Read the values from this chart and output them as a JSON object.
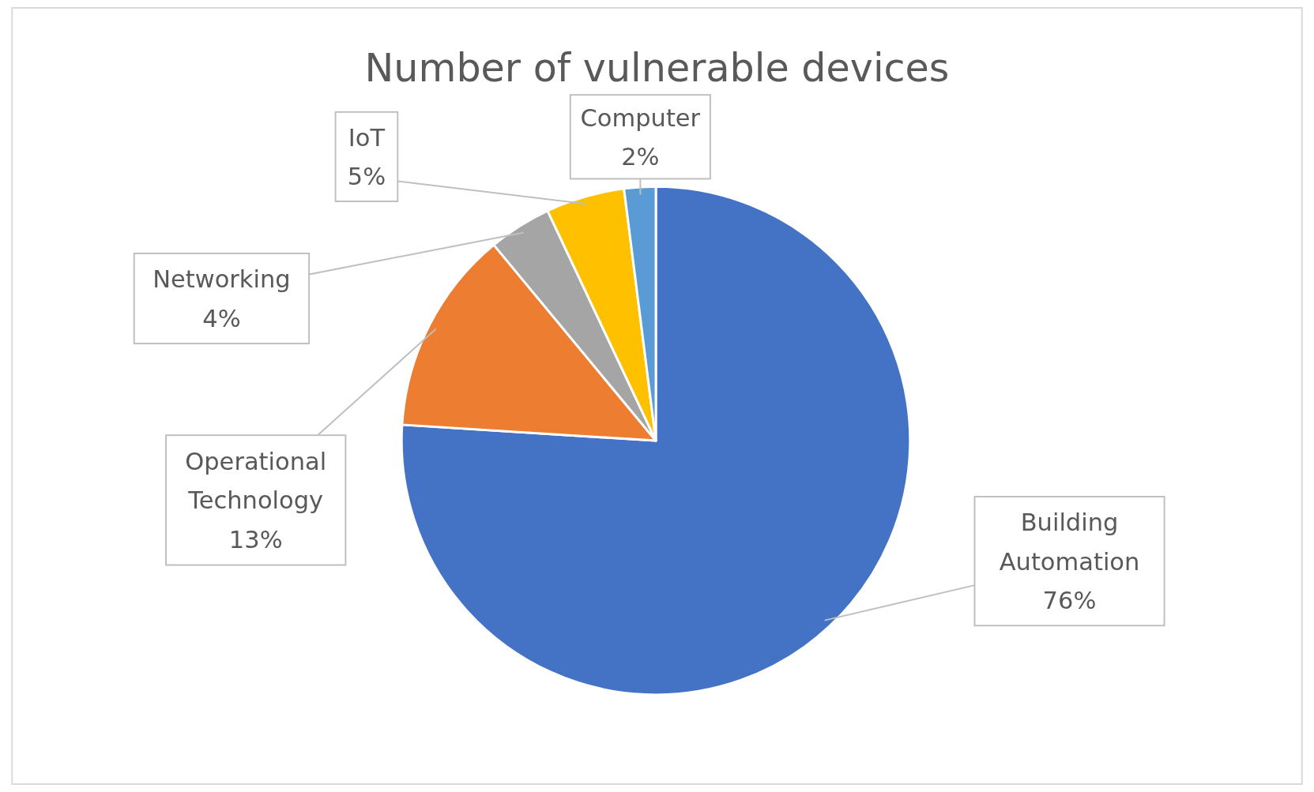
{
  "chart_data": {
    "type": "pie",
    "title": "Number of vulnerable devices",
    "categories": [
      "Building Automation",
      "Operational Technology",
      "Networking",
      "IoT",
      "Computer"
    ],
    "values": [
      76,
      13,
      4,
      5,
      2
    ],
    "value_labels": [
      "76%",
      "13%",
      "4%",
      "5%",
      "2%"
    ],
    "colors": [
      "#4472c4",
      "#ed7d31",
      "#a5a5a5",
      "#ffc000",
      "#5b9bd5"
    ]
  }
}
